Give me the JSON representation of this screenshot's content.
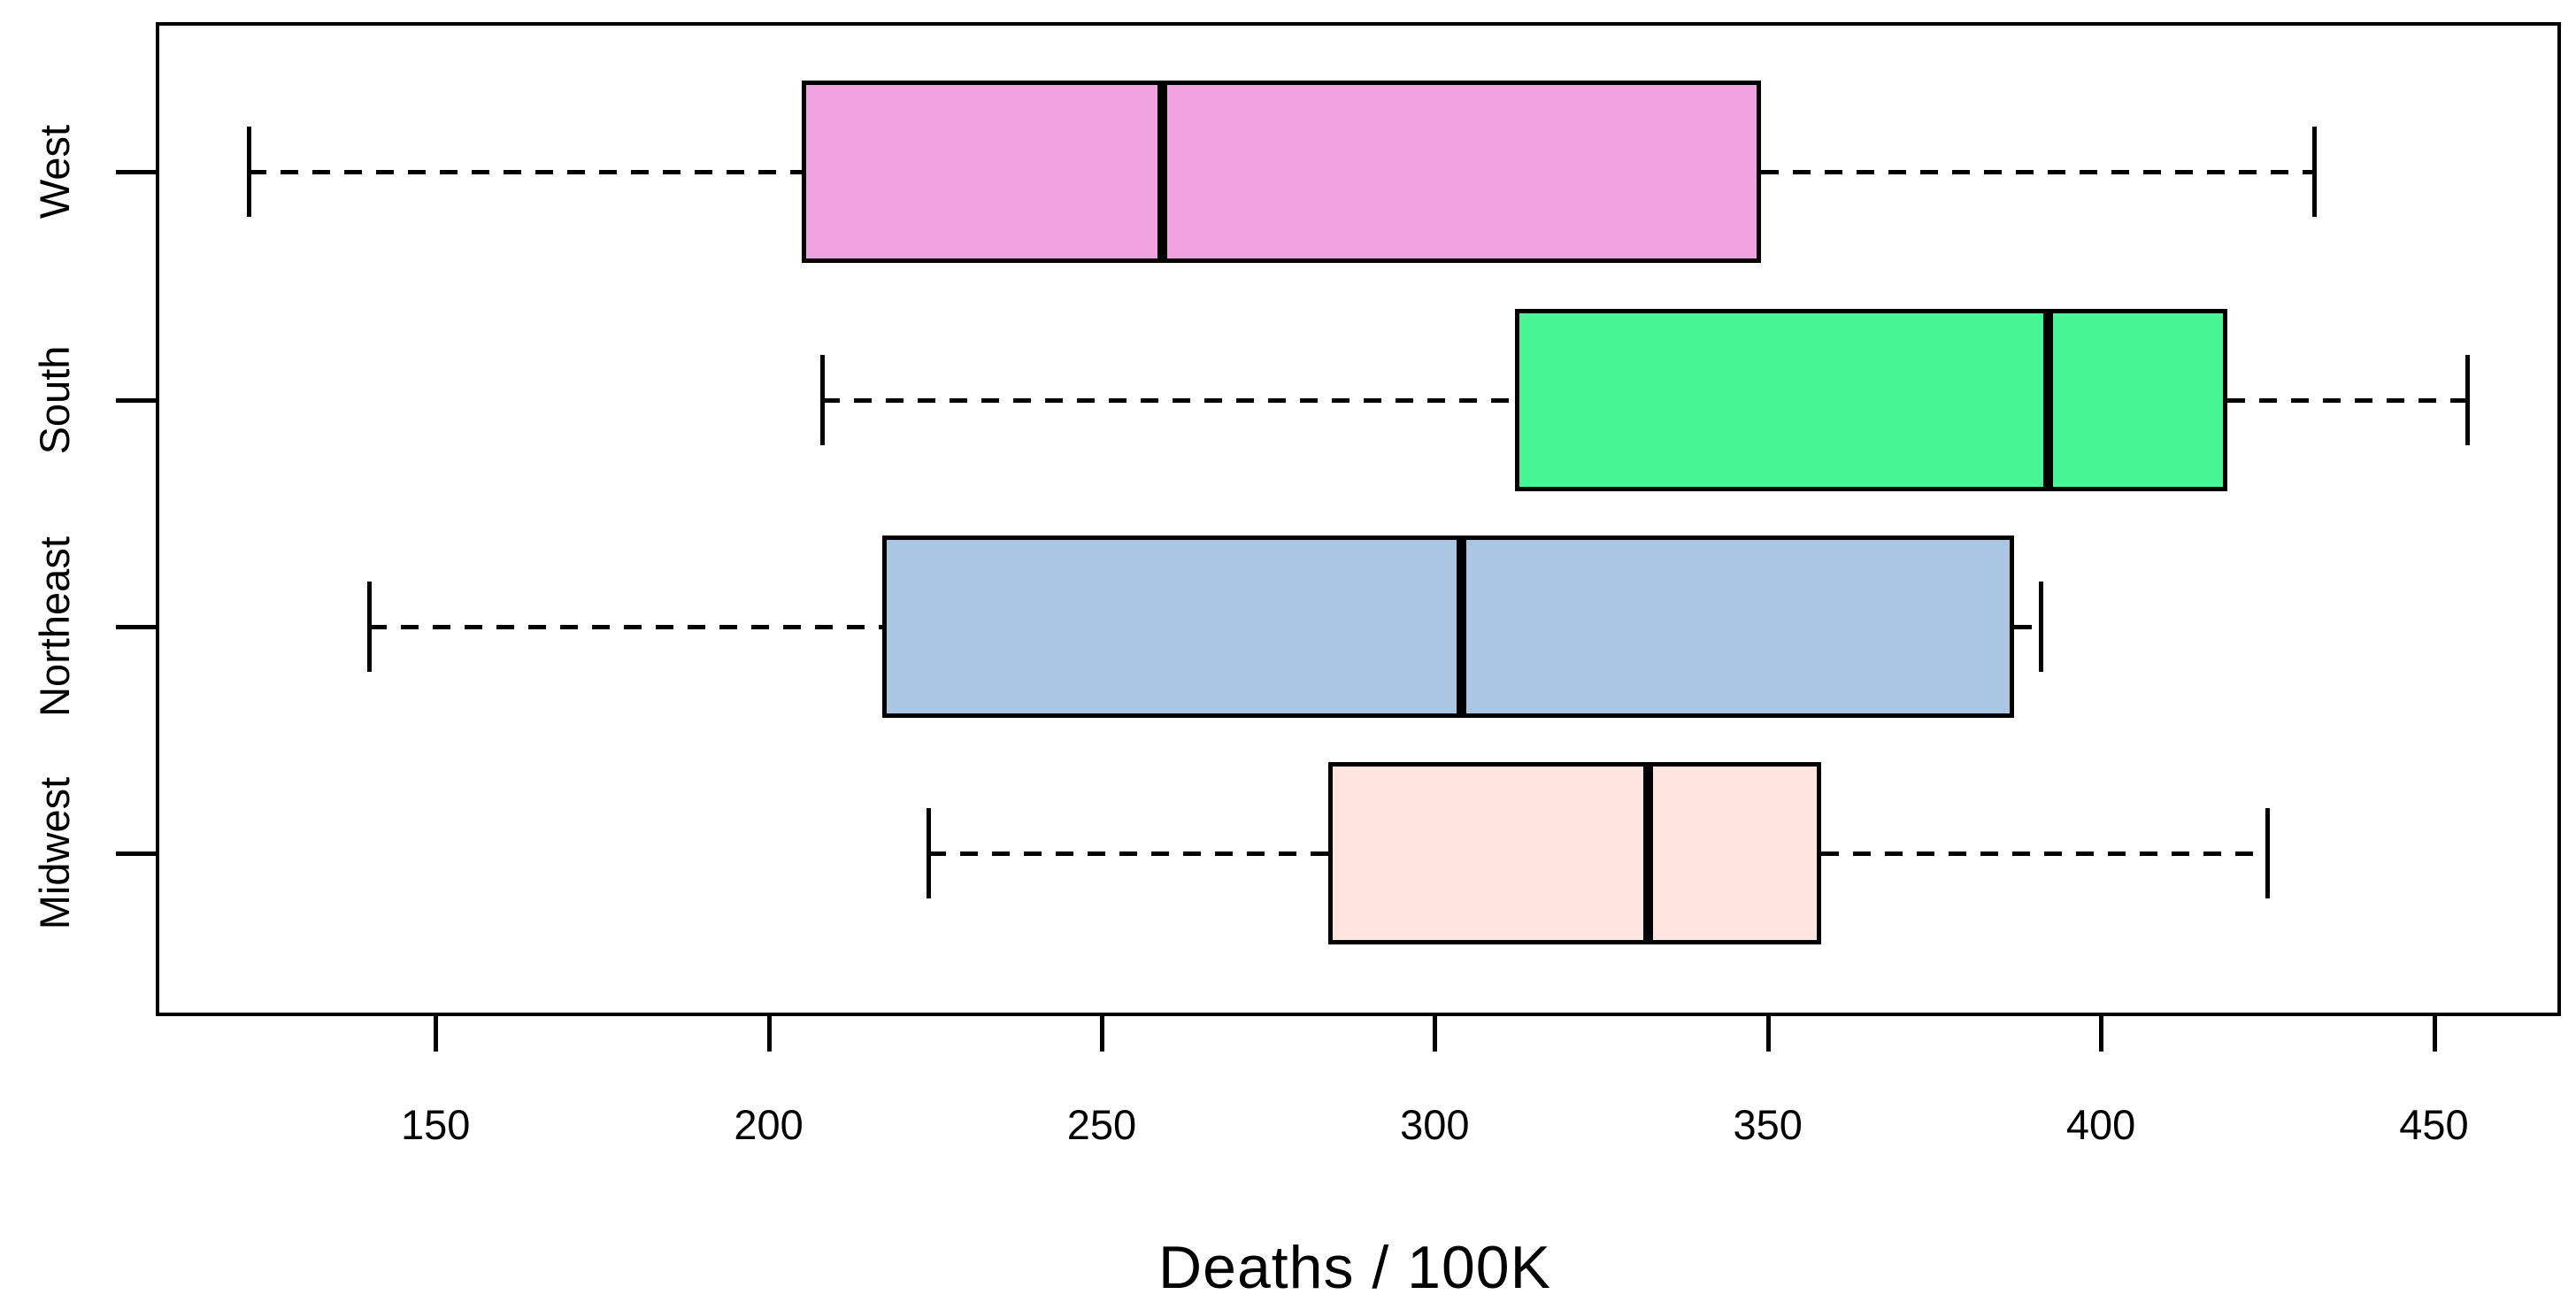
{
  "chart_data": {
    "type": "boxplot",
    "orientation": "horizontal",
    "title": "",
    "xlabel": "Deaths / 100K",
    "ylabel": "",
    "x_ticks": [
      150,
      200,
      250,
      300,
      350,
      400,
      450
    ],
    "xlim": [
      108,
      468
    ],
    "grid": false,
    "legend": "none",
    "categories_top_to_bottom": [
      "West",
      "South",
      "Northeast",
      "Midwest"
    ],
    "series": [
      {
        "name": "West",
        "whisker_low": 122,
        "q1": 205,
        "median": 259,
        "q3": 349,
        "whisker_high": 432,
        "fill": "#F0A2E0"
      },
      {
        "name": "South",
        "whisker_low": 208,
        "q1": 312,
        "median": 392,
        "q3": 419,
        "whisker_high": 455,
        "fill": "#48F594"
      },
      {
        "name": "Northeast",
        "whisker_low": 140,
        "q1": 217,
        "median": 304,
        "q3": 387,
        "whisker_high": 391,
        "fill": "#AAC6E2"
      },
      {
        "name": "Midwest",
        "whisker_low": 224,
        "q1": 284,
        "median": 332,
        "q3": 358,
        "whisker_high": 425,
        "fill": "#FFE4E0"
      }
    ],
    "colors": {
      "box_border": "#000000",
      "median_line": "#000000",
      "whisker_line": "#000000",
      "background": "#ffffff"
    }
  }
}
